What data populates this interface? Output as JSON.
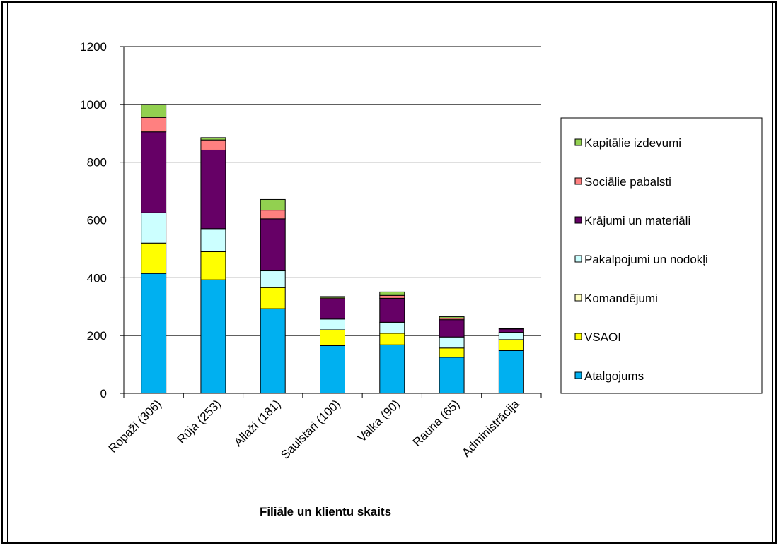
{
  "chart_data": {
    "type": "bar",
    "stacked": true,
    "title": "",
    "xlabel": "Filiāle un klientu skaits",
    "ylabel": "",
    "ylim": [
      0,
      1200
    ],
    "yticks": [
      0,
      200,
      400,
      600,
      800,
      1000,
      1200
    ],
    "grid": true,
    "legend_position": "right",
    "categories": [
      "Ropaži (306)",
      "Rūja (253)",
      "Allaži (181)",
      "Saulstari (100)",
      "Valka (90)",
      "Rauna (65)",
      "Administrācija"
    ],
    "series": [
      {
        "name": "Atalgojums",
        "color": "#00B0F0",
        "values": [
          415,
          393,
          293,
          165,
          168,
          125,
          148
        ]
      },
      {
        "name": "VSAOI",
        "color": "#FFFF00",
        "values": [
          105,
          97,
          73,
          55,
          40,
          32,
          38
        ]
      },
      {
        "name": "Komandējumi",
        "color": "#FFFFC0",
        "values": [
          0,
          0,
          0,
          0,
          0,
          0,
          0
        ]
      },
      {
        "name": "Pakalpojumi un nodokļi",
        "color": "#CCFFFF",
        "values": [
          105,
          80,
          58,
          37,
          38,
          38,
          25
        ]
      },
      {
        "name": "Krājumi un materiāli",
        "color": "#660066",
        "values": [
          280,
          272,
          180,
          70,
          83,
          60,
          12
        ]
      },
      {
        "name": "Sociālie pabalsti",
        "color": "#FF8080",
        "values": [
          50,
          35,
          30,
          3,
          10,
          5,
          2
        ]
      },
      {
        "name": "Kapitālie izdevumi",
        "color": "#92D050",
        "values": [
          45,
          8,
          37,
          5,
          12,
          5,
          0
        ]
      }
    ],
    "legend_order": [
      "Kapitālie izdevumi",
      "Sociālie pabalsti",
      "Krājumi un materiāli",
      "Pakalpojumi un nodokļi",
      "Komandējumi",
      "VSAOI",
      "Atalgojums"
    ]
  }
}
